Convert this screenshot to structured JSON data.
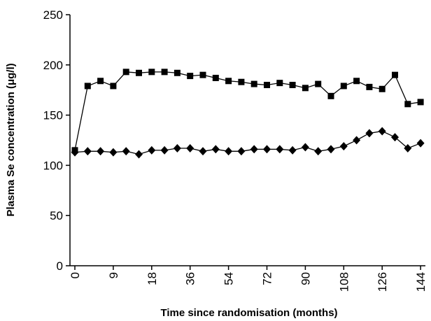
{
  "chart_data": {
    "type": "line",
    "x_label": "Time since randomisation (months)",
    "y_label": "Plasma Se concentration (μg/l)",
    "categories": [
      "0",
      null,
      null,
      "9",
      null,
      null,
      "18",
      null,
      null,
      "36",
      null,
      null,
      "54",
      null,
      null,
      "72",
      null,
      null,
      "90",
      null,
      null,
      "108",
      null,
      null,
      "126",
      null,
      null,
      "144"
    ],
    "series": [
      {
        "color": "#000000",
        "marker": "square",
        "values": [
          115,
          179,
          184,
          179,
          193,
          192,
          193,
          193,
          192,
          189,
          190,
          187,
          184,
          183,
          181,
          180,
          182,
          180,
          177,
          181,
          169,
          179,
          184,
          178,
          176,
          190,
          161,
          163
        ]
      },
      {
        "color": "#000000",
        "marker": "diamond",
        "values": [
          113,
          114,
          114,
          113,
          114,
          111,
          115,
          115,
          117,
          117,
          114,
          116,
          114,
          114,
          116,
          116,
          116,
          115,
          118,
          114,
          116,
          119,
          125,
          132,
          134,
          128,
          117,
          122
        ]
      }
    ],
    "ylim": [
      0,
      250
    ],
    "yticks": [
      0,
      50,
      100,
      150,
      200,
      250
    ]
  }
}
